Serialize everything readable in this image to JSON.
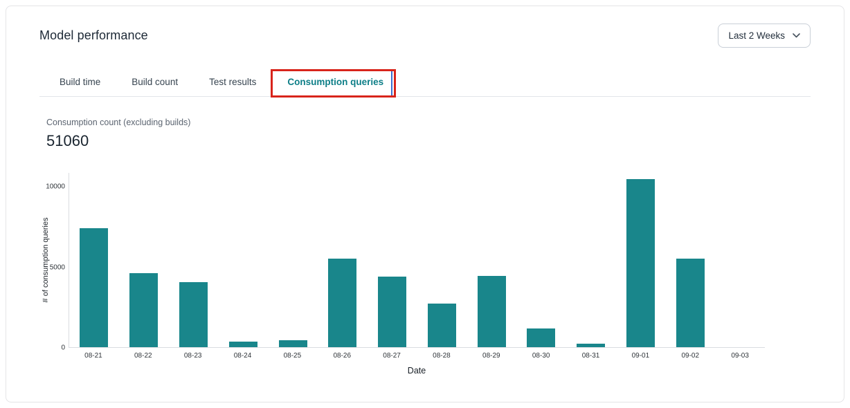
{
  "header": {
    "title": "Model performance",
    "time_range": {
      "value": "Last 2 Weeks"
    }
  },
  "tabs": {
    "items": [
      {
        "label": "Build time",
        "active": false
      },
      {
        "label": "Build count",
        "active": false
      },
      {
        "label": "Test results",
        "active": false
      },
      {
        "label": "Consumption queries",
        "active": true,
        "annotated": true
      }
    ]
  },
  "stat": {
    "label": "Consumption count (excluding builds)",
    "value": "51060"
  },
  "chart_data": {
    "type": "bar",
    "title": "",
    "xlabel": "Date",
    "ylabel": "# of consumption queries",
    "categories": [
      "08-21",
      "08-22",
      "08-23",
      "08-24",
      "08-25",
      "08-26",
      "08-27",
      "08-28",
      "08-29",
      "08-30",
      "08-31",
      "09-01",
      "09-02",
      "09-03"
    ],
    "values": [
      7380,
      4600,
      4020,
      350,
      420,
      5480,
      4400,
      2700,
      4440,
      1140,
      200,
      10420,
      5510,
      0
    ],
    "total": 51060,
    "ylim": [
      0,
      10880
    ],
    "yticks": [
      0,
      5000,
      10000
    ],
    "grid": false,
    "legend": null,
    "bar_color": "#19868b"
  },
  "colors": {
    "bar_teal": "#19868b",
    "active_tab_teal": "#0d7e87",
    "annotation_red": "#d8241b",
    "focus_blue": "#3a6fd0",
    "axis_line": "#d9dce0",
    "card_border": "#e4e4e6"
  }
}
